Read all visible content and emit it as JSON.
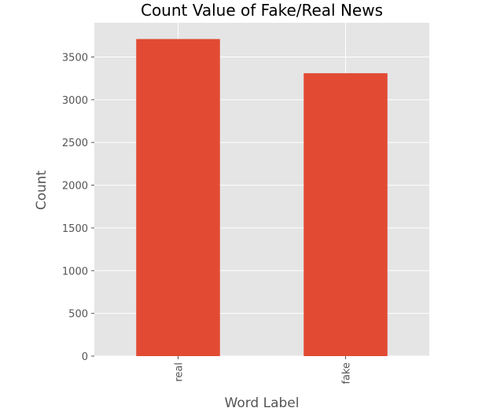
{
  "chart_data": {
    "type": "bar",
    "title": "Count Value of Fake/Real News",
    "xlabel": "Word Label",
    "ylabel": "Count",
    "categories": [
      "real",
      "fake"
    ],
    "values": [
      3710,
      3310
    ],
    "ylim": [
      0,
      3900
    ],
    "yticks": [
      0,
      500,
      1000,
      1500,
      2000,
      2500,
      3000,
      3500
    ],
    "ytick_labels": [
      "0",
      "500",
      "1000",
      "1500",
      "2000",
      "2500",
      "3000",
      "3500"
    ],
    "grid": true,
    "bar_color": "#e24a33",
    "plot_background": "#e5e5e5",
    "grid_color": "#ffffff",
    "text_color": "#555555",
    "tick_rotation_deg": -90
  }
}
